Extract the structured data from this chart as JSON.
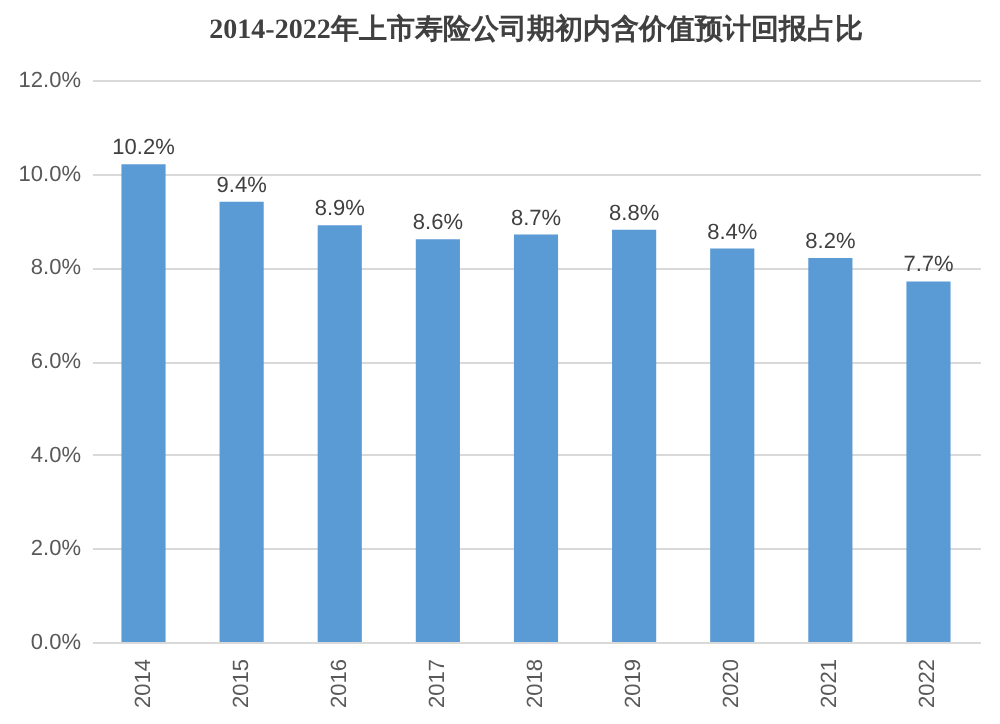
{
  "chart_data": {
    "type": "bar",
    "title": "2014-2022年上市寿险公司期初内含价值预计回报占比",
    "categories": [
      "2014",
      "2015",
      "2016",
      "2017",
      "2018",
      "2019",
      "2020",
      "2021",
      "2022"
    ],
    "values": [
      10.2,
      9.4,
      8.9,
      8.6,
      8.7,
      8.8,
      8.4,
      8.2,
      7.7
    ],
    "value_labels": [
      "10.2%",
      "9.4%",
      "8.9%",
      "8.6%",
      "8.7%",
      "8.8%",
      "8.4%",
      "8.2%",
      "7.7%"
    ],
    "color": "#5b9bd5",
    "ylim": [
      0,
      12
    ],
    "yticks": [
      {
        "value": 0,
        "label": "0.0%"
      },
      {
        "value": 2,
        "label": "2.0%"
      },
      {
        "value": 4,
        "label": "4.0%"
      },
      {
        "value": 6,
        "label": "6.0%"
      },
      {
        "value": 8,
        "label": "8.0%"
      },
      {
        "value": 10,
        "label": "10.0%"
      },
      {
        "value": 12,
        "label": "12.0%"
      }
    ],
    "grid": "y"
  }
}
